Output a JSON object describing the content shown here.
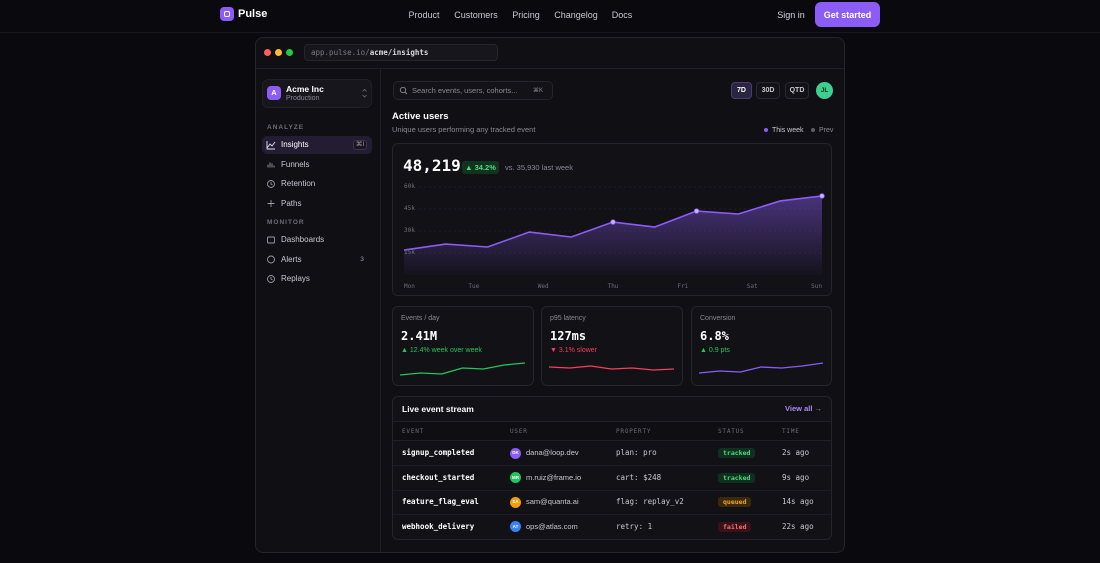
{
  "nav": {
    "brand": "Pulse",
    "links": [
      "Product",
      "Customers",
      "Pricing",
      "Changelog",
      "Docs"
    ],
    "sign_in": "Sign in",
    "cta": "Get started"
  },
  "window": {
    "url_host": "app.pulse.io/",
    "url_path": "acme/insights"
  },
  "sidebar": {
    "workspace": {
      "initial": "A",
      "name": "Acme Inc",
      "env": "Production"
    },
    "sections": [
      {
        "title": "ANALYZE",
        "items": [
          {
            "label": "Insights",
            "badge": "⌘I",
            "active": true
          },
          {
            "label": "Funnels"
          },
          {
            "label": "Retention"
          },
          {
            "label": "Paths"
          }
        ]
      },
      {
        "title": "MONITOR",
        "items": [
          {
            "label": "Dashboards"
          },
          {
            "label": "Alerts",
            "badge": "3"
          },
          {
            "label": "Replays"
          }
        ]
      }
    ]
  },
  "toolbar": {
    "search": "Search events, users, cohorts...",
    "shortcut": "⌘K",
    "ranges": [
      "7D",
      "30D",
      "QTD"
    ],
    "active_range": 0,
    "user_initials": "JL"
  },
  "chart_data": {
    "type": "line",
    "title": "Active users",
    "subtitle": "Unique users performing any tracked event",
    "headline": "48,219",
    "change": "▲ 34.2%",
    "comparison_text": "vs. 35,930 last week",
    "comparison": {
      "name": "Prev",
      "color": "#5f5c6b"
    },
    "x": [
      0,
      1,
      2,
      3,
      4,
      5,
      6,
      7,
      8,
      9,
      10
    ],
    "xlim": [
      0,
      10
    ],
    "xticks": [
      {
        "value": 0,
        "label": "Mon"
      },
      {
        "value": 1.67,
        "label": "Tue"
      },
      {
        "value": 3.33,
        "label": "Wed"
      },
      {
        "value": 5,
        "label": "Thu"
      },
      {
        "value": 6.67,
        "label": "Fri"
      },
      {
        "value": 8.33,
        "label": "Sat"
      },
      {
        "value": 10,
        "label": "Sun"
      }
    ],
    "ylim": [
      0,
      60000
    ],
    "yticks": [
      {
        "value": 15000,
        "label": "15k"
      },
      {
        "value": 30000,
        "label": "30k"
      },
      {
        "value": 45000,
        "label": "45k"
      },
      {
        "value": 60000,
        "label": "60k"
      }
    ],
    "grid": true,
    "series": [
      {
        "name": "This week",
        "color": "#8b5cf6",
        "values": [
          17000,
          21100,
          19100,
          29300,
          25900,
          36100,
          32700,
          43600,
          41600,
          50500,
          53900
        ]
      }
    ]
  },
  "metrics": [
    {
      "label": "Events / day",
      "value": "2.41M",
      "delta": "▲ 12.4% week over week",
      "delta_color": "#22c55e",
      "line_color": "#22c55e",
      "trend": [
        1,
        3,
        2,
        8,
        7,
        11,
        13
      ]
    },
    {
      "label": "p95 latency",
      "value": "127ms",
      "delta": "▼ 3.1% slower",
      "delta_color": "#f43f5e",
      "line_color": "#f43f5e",
      "trend": [
        9,
        8,
        10,
        7,
        8,
        6,
        7
      ]
    },
    {
      "label": "Conversion",
      "value": "6.8%",
      "delta": "▲ 0.9 pts",
      "delta_color": "#22c55e",
      "line_color": "#8b5cf6",
      "trend": [
        3,
        5,
        4,
        9,
        8,
        10,
        13
      ]
    }
  ],
  "events": {
    "title": "Live event stream",
    "link": "View all →",
    "columns": [
      "EVENT",
      "USER",
      "PROPERTY",
      "STATUS",
      "TIME"
    ],
    "rows": [
      {
        "event": "signup_completed",
        "initials": "DK",
        "avatar_color": "#8b5cf6",
        "user": "dana@loop.dev",
        "property": "plan: pro",
        "status": "tracked",
        "time": "2s ago"
      },
      {
        "event": "checkout_started",
        "initials": "MR",
        "avatar_color": "#22c55e",
        "user": "m.ruiz@frame.io",
        "property": "cart: $248",
        "status": "tracked",
        "time": "9s ago"
      },
      {
        "event": "feature_flag_eval",
        "initials": "SA",
        "avatar_color": "#f59e0b",
        "user": "sam@quanta.ai",
        "property": "flag: replay_v2",
        "status": "queued",
        "time": "14s ago"
      },
      {
        "event": "webhook_delivery",
        "initials": "AT",
        "avatar_color": "#3b82f6",
        "user": "ops@atlas.com",
        "property": "retry: 1",
        "status": "failed",
        "time": "22s ago"
      }
    ]
  }
}
